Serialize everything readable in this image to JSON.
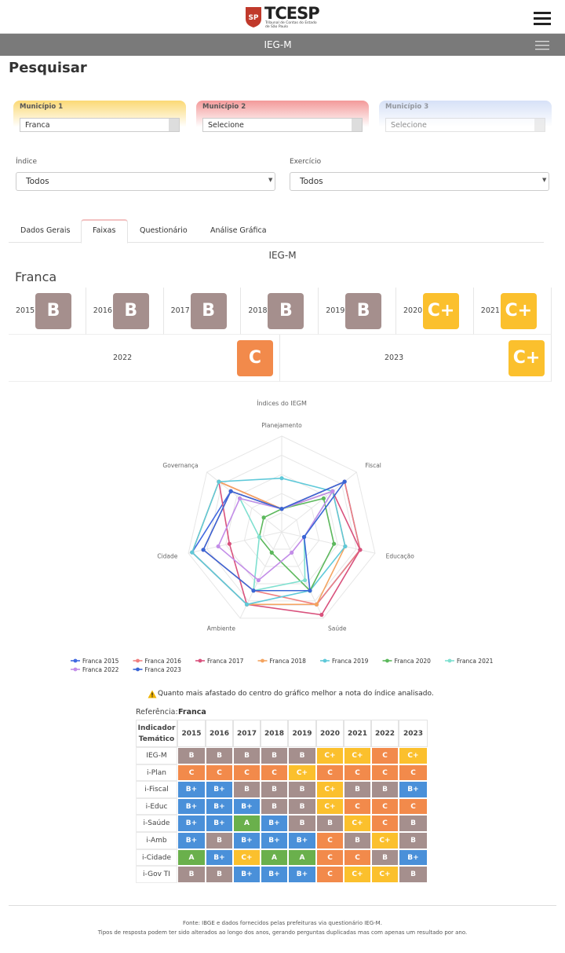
{
  "header": {
    "logo": "TCESP",
    "logo_sub": "Tribunal de Contas do Estado de São Paulo",
    "nav_title": "IEG-M"
  },
  "page_title": "Pesquisar",
  "municipios": [
    {
      "label": "Município 1",
      "value": "Franca"
    },
    {
      "label": "Município 2",
      "value": "Selecione"
    },
    {
      "label": "Município 3",
      "value": "Selecione"
    }
  ],
  "filters": [
    {
      "label": "Índice",
      "value": "Todos"
    },
    {
      "label": "Exercício",
      "value": "Todos"
    }
  ],
  "tabs": [
    "Dados Gerais",
    "Faixas",
    "Questionário",
    "Análise Gráfica"
  ],
  "section_title": "IEG-M",
  "municipality": "Franca",
  "grade_colors": {
    "A": "#6ab04c",
    "B+": "#4a90d9",
    "B": "#a58f8d",
    "C+": "#fbc02d",
    "C": "#f28a4b"
  },
  "faixas": [
    {
      "year": "2015",
      "grade": "B"
    },
    {
      "year": "2016",
      "grade": "B"
    },
    {
      "year": "2017",
      "grade": "B"
    },
    {
      "year": "2018",
      "grade": "B"
    },
    {
      "year": "2019",
      "grade": "B"
    },
    {
      "year": "2020",
      "grade": "C+"
    },
    {
      "year": "2021",
      "grade": "C+"
    },
    {
      "year": "2022",
      "grade": "C"
    },
    {
      "year": "2023",
      "grade": "C+"
    }
  ],
  "chart_data": {
    "type": "radar",
    "title": "Índices do IEGM",
    "axes": [
      "Planejamento",
      "Fiscal",
      "Educação",
      "Saúde",
      "Ambiente",
      "Cidade",
      "Governança"
    ],
    "rlim": [
      0,
      5
    ],
    "rticks": [
      1,
      2,
      3,
      4,
      5
    ],
    "series": [
      {
        "name": "Franca 2015",
        "color": "#4169e1",
        "values": [
          1.2,
          4.2,
          4.2,
          4.2,
          4.2,
          4.8,
          3.4
        ]
      },
      {
        "name": "Franca 2016",
        "color": "#f08080",
        "values": [
          1.2,
          4.2,
          4.2,
          4.2,
          3.4,
          4.2,
          3.4
        ]
      },
      {
        "name": "Franca 2017",
        "color": "#d9527d",
        "values": [
          1.2,
          3.4,
          4.2,
          4.8,
          4.2,
          2.8,
          4.2
        ]
      },
      {
        "name": "Franca 2018",
        "color": "#f4a460",
        "values": [
          1.2,
          3.4,
          3.4,
          4.2,
          4.2,
          4.8,
          4.2
        ]
      },
      {
        "name": "Franca 2019",
        "color": "#5fc9d9",
        "values": [
          2.8,
          3.4,
          3.4,
          3.4,
          4.2,
          4.8,
          4.2
        ]
      },
      {
        "name": "Franca 2020",
        "color": "#5cb85c",
        "values": [
          1.2,
          2.8,
          2.8,
          3.4,
          1.2,
          1.2,
          1.2
        ]
      },
      {
        "name": "Franca 2021",
        "color": "#7fe0d0",
        "values": [
          1.2,
          3.4,
          1.2,
          2.8,
          3.4,
          1.2,
          2.8
        ]
      },
      {
        "name": "Franca 2022",
        "color": "#c38de8",
        "values": [
          1.2,
          3.4,
          1.2,
          1.2,
          2.8,
          3.4,
          2.8
        ]
      },
      {
        "name": "Franca 2023",
        "color": "#3a66d6",
        "values": [
          1.2,
          4.2,
          1.2,
          3.4,
          3.4,
          4.2,
          3.4
        ]
      }
    ]
  },
  "note": "Quanto mais afastado do centro do gráfico melhor a nota do índice analisado.",
  "reference": {
    "label": "Referência:",
    "value": "Franca"
  },
  "table": {
    "header": [
      "Indicador Temático",
      "2015",
      "2016",
      "2017",
      "2018",
      "2019",
      "2020",
      "2021",
      "2022",
      "2023"
    ],
    "rows": [
      [
        "IEG-M",
        "B",
        "B",
        "B",
        "B",
        "B",
        "C+",
        "C+",
        "C",
        "C+"
      ],
      [
        "i-Plan",
        "C",
        "C",
        "C",
        "C",
        "C+",
        "C",
        "C",
        "C",
        "C"
      ],
      [
        "i-Fiscal",
        "B+",
        "B+",
        "B",
        "B",
        "B",
        "C+",
        "B",
        "B",
        "B+"
      ],
      [
        "i-Educ",
        "B+",
        "B+",
        "B+",
        "B",
        "B",
        "C+",
        "C",
        "C",
        "C"
      ],
      [
        "i-Saúde",
        "B+",
        "B+",
        "A",
        "B+",
        "B",
        "B",
        "C+",
        "C",
        "B"
      ],
      [
        "i-Amb",
        "B+",
        "B",
        "B+",
        "B+",
        "B+",
        "C",
        "B",
        "C+",
        "B"
      ],
      [
        "i-Cidade",
        "A",
        "B+",
        "C+",
        "A",
        "A",
        "C",
        "C",
        "B",
        "B+"
      ],
      [
        "i-Gov TI",
        "B",
        "B",
        "B+",
        "B+",
        "B+",
        "C",
        "C+",
        "C+",
        "B"
      ]
    ]
  },
  "footer": [
    "Fonte: IBGE e dados fornecidos pelas prefeituras via questionário IEG-M.",
    "Tipos de resposta podem ter sido alterados ao longo dos anos, gerando perguntas duplicadas mas com apenas um resultado por ano."
  ]
}
